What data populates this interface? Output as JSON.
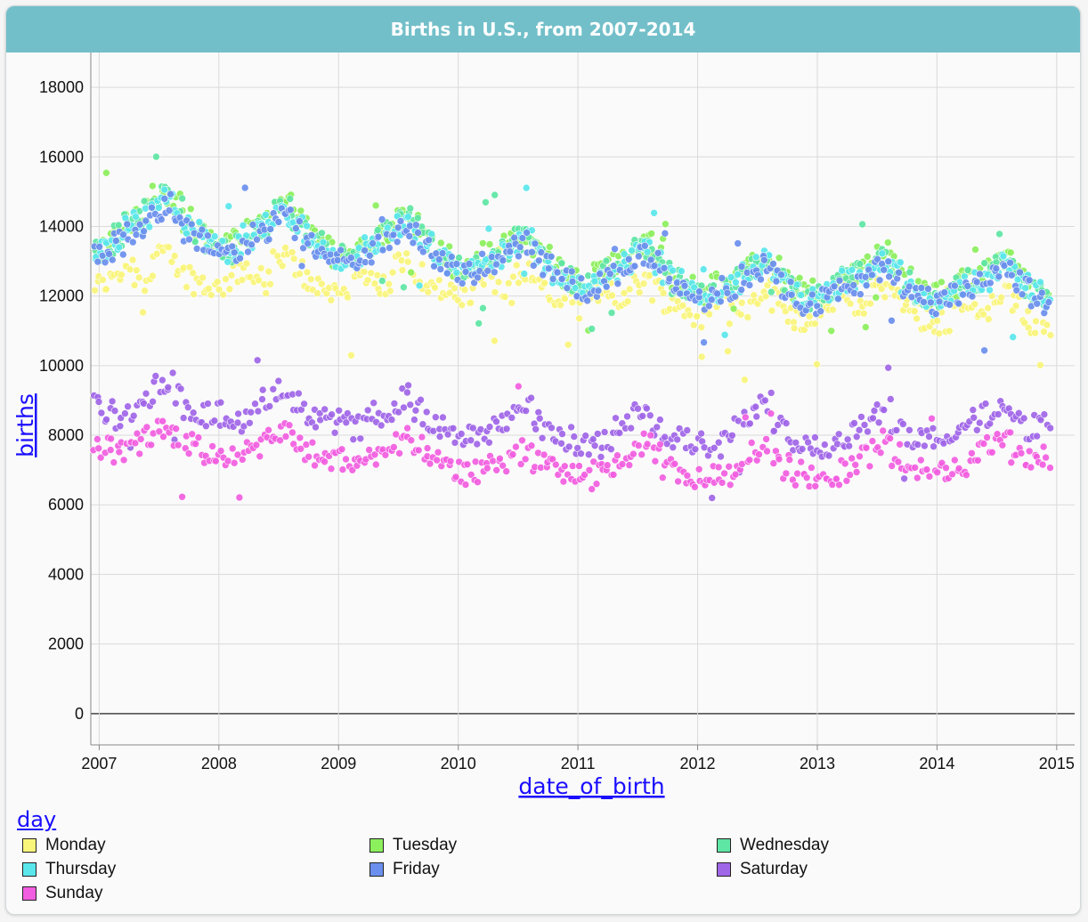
{
  "title": "Births in U.S., from 2007-2014",
  "chart_data": {
    "type": "scatter",
    "title": "Births in U.S., from 2007-2014",
    "xlabel": "date_of_birth",
    "ylabel": "births",
    "xlim": [
      2006.93,
      2015.15
    ],
    "ylim": [
      -900,
      19000
    ],
    "x_ticks": [
      "2007",
      "2008",
      "2009",
      "2010",
      "2011",
      "2012",
      "2013",
      "2014",
      "2015"
    ],
    "y_ticks": [
      0,
      2000,
      4000,
      6000,
      8000,
      10000,
      12000,
      14000,
      16000,
      18000
    ],
    "grid": true,
    "legend_placement": "bottom",
    "legend_title": "day",
    "series": [
      {
        "name": "Monday",
        "color": "#f9f57a",
        "monthly_mean": [
          12300,
          12400,
          12700,
          12900,
          12600,
          12500,
          13100,
          13200,
          12900,
          12600,
          12400,
          12300,
          12200,
          12300,
          12600,
          12800,
          12500,
          12400,
          13000,
          13100,
          12800,
          12500,
          12300,
          12200,
          12100,
          12200,
          12500,
          12700,
          12400,
          12300,
          12900,
          13000,
          12700,
          12400,
          12200,
          12100,
          11900,
          12000,
          12300,
          12500,
          12200,
          12100,
          12600,
          12700,
          12400,
          12100,
          11900,
          11800,
          11700,
          11800,
          12100,
          12300,
          12000,
          11900,
          12400,
          12500,
          12200,
          11900,
          11700,
          11600,
          11400,
          11500,
          11800,
          12000,
          11700,
          11600,
          12100,
          12200,
          11900,
          11600,
          11400,
          11300,
          11500,
          11600,
          11900,
          12100,
          11800,
          11700,
          12200,
          12300,
          12000,
          11700,
          11500,
          11400,
          11200,
          11300,
          11600,
          11800,
          11500,
          11400,
          11900,
          12000,
          11700,
          11400,
          11200,
          11100
        ]
      },
      {
        "name": "Tuesday",
        "color": "#8cf05c",
        "monthly_mean": [
          13400,
          13500,
          13800,
          14100,
          14300,
          14500,
          14900,
          15000,
          14600,
          14200,
          13900,
          13700,
          13500,
          13400,
          13600,
          13900,
          14000,
          14200,
          14500,
          14600,
          14300,
          13900,
          13600,
          13400,
          13200,
          13100,
          13300,
          13600,
          13700,
          13900,
          14200,
          14300,
          14000,
          13600,
          13300,
          13100,
          12900,
          12800,
          13000,
          13200,
          13300,
          13500,
          13700,
          13800,
          13500,
          13100,
          12800,
          12600,
          12500,
          12400,
          12600,
          12800,
          12900,
          13100,
          13400,
          13500,
          13200,
          12800,
          12500,
          12300,
          12200,
          12100,
          12300,
          12500,
          12600,
          12800,
          13100,
          13200,
          12900,
          12500,
          12200,
          12000,
          12100,
          12200,
          12400,
          12600,
          12700,
          12800,
          13100,
          13200,
          12900,
          12500,
          12200,
          12100,
          12000,
          12100,
          12300,
          12500,
          12600,
          12700,
          13000,
          13100,
          12800,
          12400,
          12200,
          12100
        ]
      },
      {
        "name": "Wednesday",
        "color": "#5ee6a4",
        "monthly_mean": [
          13300,
          13400,
          13700,
          14000,
          14200,
          14400,
          14800,
          14900,
          14500,
          14100,
          13800,
          13600,
          13400,
          13300,
          13500,
          13800,
          13900,
          14100,
          14400,
          14500,
          14200,
          13800,
          13500,
          13300,
          13100,
          13000,
          13200,
          13500,
          13600,
          13800,
          14100,
          14200,
          13900,
          13500,
          13200,
          13000,
          12800,
          12700,
          12900,
          13100,
          13200,
          13400,
          13600,
          13700,
          13400,
          13000,
          12700,
          12500,
          12400,
          12300,
          12500,
          12700,
          12800,
          13000,
          13300,
          13400,
          13100,
          12700,
          12400,
          12200,
          12100,
          12000,
          12200,
          12400,
          12500,
          12700,
          13000,
          13100,
          12800,
          12400,
          12100,
          11900,
          12000,
          12100,
          12300,
          12500,
          12600,
          12700,
          13000,
          13100,
          12800,
          12400,
          12100,
          12000,
          11900,
          12000,
          12200,
          12400,
          12500,
          12600,
          12900,
          13000,
          12700,
          12300,
          12100,
          12000
        ]
      },
      {
        "name": "Thursday",
        "color": "#5ae7ec",
        "monthly_mean": [
          13300,
          13400,
          13600,
          13900,
          14100,
          14300,
          14700,
          14800,
          14400,
          14000,
          13800,
          13600,
          13400,
          13300,
          13400,
          13700,
          13800,
          14000,
          14300,
          14400,
          14100,
          13800,
          13500,
          13300,
          13100,
          13000,
          13100,
          13400,
          13500,
          13700,
          14000,
          14100,
          13800,
          13500,
          13200,
          13000,
          12800,
          12700,
          12800,
          13000,
          13100,
          13300,
          13500,
          13600,
          13300,
          13000,
          12700,
          12500,
          12400,
          12300,
          12400,
          12600,
          12700,
          12900,
          13200,
          13300,
          13000,
          12700,
          12400,
          12200,
          12100,
          12000,
          12100,
          12300,
          12400,
          12600,
          12900,
          13000,
          12700,
          12400,
          12100,
          11900,
          11900,
          12000,
          12200,
          12400,
          12500,
          12600,
          12900,
          13000,
          12700,
          12400,
          12100,
          12000,
          11800,
          11900,
          12100,
          12300,
          12400,
          12500,
          12800,
          12900,
          12600,
          12300,
          12100,
          11900
        ]
      },
      {
        "name": "Friday",
        "color": "#6b8fee",
        "monthly_mean": [
          13300,
          13300,
          13500,
          13800,
          14000,
          14200,
          14500,
          14600,
          14300,
          13900,
          13700,
          13500,
          13300,
          13200,
          13300,
          13600,
          13700,
          13900,
          14200,
          14300,
          14000,
          13700,
          13400,
          13200,
          13000,
          12900,
          13000,
          13300,
          13400,
          13600,
          13900,
          14000,
          13700,
          13400,
          13100,
          12900,
          12700,
          12600,
          12700,
          12900,
          13000,
          13200,
          13400,
          13500,
          13200,
          12900,
          12600,
          12400,
          12300,
          12200,
          12300,
          12500,
          12600,
          12800,
          13100,
          13200,
          12900,
          12600,
          12300,
          12100,
          12000,
          11900,
          12000,
          12200,
          12300,
          12500,
          12800,
          12900,
          12600,
          12300,
          12000,
          11800,
          11800,
          11900,
          12100,
          12300,
          12400,
          12500,
          12800,
          12900,
          12600,
          12300,
          12000,
          11900,
          11700,
          11800,
          12000,
          12200,
          12300,
          12400,
          12700,
          12800,
          12500,
          12200,
          12000,
          11800
        ]
      },
      {
        "name": "Saturday",
        "color": "#a066e8",
        "monthly_mean": [
          8800,
          8700,
          8500,
          8600,
          8900,
          9100,
          9400,
          9600,
          9100,
          8800,
          8700,
          8600,
          8600,
          8500,
          8400,
          8600,
          8900,
          9000,
          9300,
          9400,
          8900,
          8600,
          8500,
          8400,
          8400,
          8300,
          8200,
          8400,
          8600,
          8700,
          9000,
          9100,
          8700,
          8400,
          8300,
          8200,
          8000,
          7900,
          7900,
          8100,
          8300,
          8400,
          8700,
          8800,
          8400,
          8100,
          8000,
          7900,
          7800,
          7700,
          7700,
          7900,
          8200,
          8300,
          8600,
          8700,
          8300,
          8000,
          7900,
          7800,
          7800,
          7700,
          7700,
          7800,
          8200,
          8400,
          8800,
          8900,
          8400,
          8100,
          7900,
          7800,
          7700,
          7600,
          7700,
          7900,
          8200,
          8400,
          8700,
          8800,
          8300,
          8000,
          7900,
          7900,
          8000,
          7900,
          8000,
          8200,
          8400,
          8600,
          8800,
          8900,
          8500,
          8200,
          8300,
          8400
        ]
      },
      {
        "name": "Sunday",
        "color": "#f25ee0",
        "monthly_mean": [
          7600,
          7600,
          7500,
          7600,
          7800,
          7900,
          8100,
          8200,
          7900,
          7700,
          7600,
          7500,
          7500,
          7400,
          7300,
          7500,
          7700,
          7800,
          8000,
          8100,
          7800,
          7500,
          7400,
          7300,
          7300,
          7200,
          7200,
          7300,
          7500,
          7600,
          7800,
          7900,
          7600,
          7300,
          7200,
          7100,
          7000,
          6900,
          6900,
          7100,
          7200,
          7300,
          7500,
          7600,
          7300,
          7100,
          7000,
          6900,
          6900,
          6800,
          6900,
          7000,
          7200,
          7300,
          7600,
          7700,
          7400,
          7100,
          6900,
          6800,
          6800,
          6700,
          6800,
          6900,
          7100,
          7300,
          7600,
          7700,
          7400,
          7100,
          6900,
          6800,
          6800,
          6700,
          6800,
          7000,
          7200,
          7400,
          7700,
          7800,
          7400,
          7100,
          7000,
          7000,
          7000,
          6900,
          7000,
          7200,
          7400,
          7600,
          7800,
          7900,
          7500,
          7200,
          7300,
          7400
        ]
      }
    ]
  },
  "legend": {
    "title": "day",
    "items": [
      {
        "label": "Monday",
        "color": "#f9f57a"
      },
      {
        "label": "Tuesday",
        "color": "#8cf05c"
      },
      {
        "label": "Wednesday",
        "color": "#5ee6a4"
      },
      {
        "label": "Thursday",
        "color": "#5ae7ec"
      },
      {
        "label": "Friday",
        "color": "#6b8fee"
      },
      {
        "label": "Saturday",
        "color": "#a066e8"
      },
      {
        "label": "Sunday",
        "color": "#f25ee0"
      }
    ]
  }
}
